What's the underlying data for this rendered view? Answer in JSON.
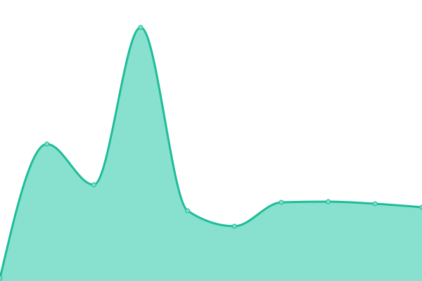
{
  "chart_data": {
    "type": "area",
    "title": "",
    "xlabel": "",
    "ylabel": "",
    "x": [
      0,
      1,
      2,
      3,
      4,
      5,
      6,
      7,
      8,
      9
    ],
    "series": [
      {
        "values": [
          4,
          195,
          137,
          361,
          100,
          78,
          112,
          113,
          110,
          105
        ]
      }
    ],
    "ylim": [
      0,
      400
    ],
    "grid": false,
    "axes_visible": false,
    "curve": "smooth",
    "markers": true,
    "colors": {
      "line": "#1dbd98",
      "fill": "#88e0cf",
      "marker_fill": "#7fdcc6",
      "marker_stroke": "#1dbd98"
    }
  }
}
